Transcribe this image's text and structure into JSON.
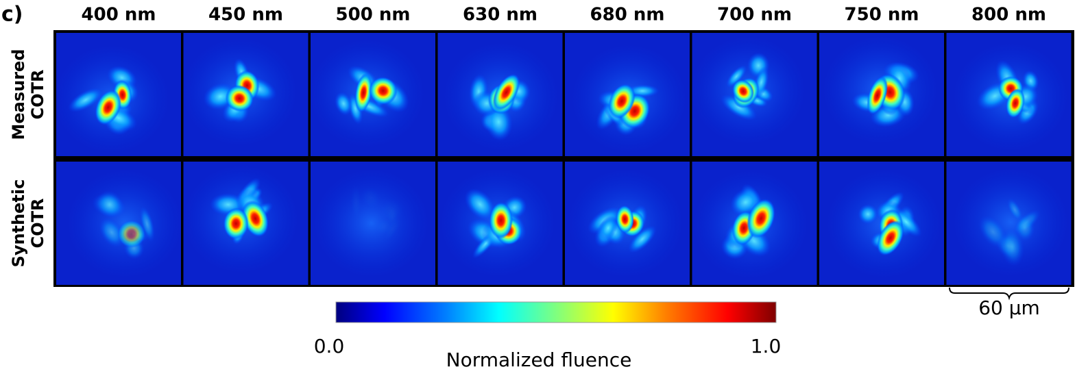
{
  "panel_label": "c)",
  "columns": [
    "400 nm",
    "450 nm",
    "500 nm",
    "630 nm",
    "680 nm",
    "700 nm",
    "750 nm",
    "800 nm"
  ],
  "rows": [
    [
      "Measured",
      "COTR"
    ],
    [
      "Synthetic",
      "COTR"
    ]
  ],
  "colorbar": {
    "min_label": "0.0",
    "max_label": "1.0",
    "title": "Normalized fluence"
  },
  "scale_bar": "60 µm"
}
